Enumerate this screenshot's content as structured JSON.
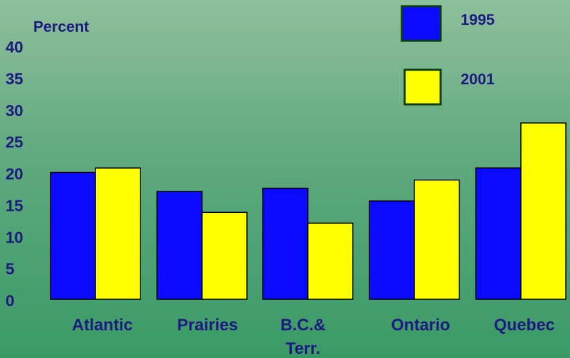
{
  "chart_data": {
    "type": "bar",
    "ylabel": "Percent",
    "categories": [
      "Atlantic",
      "Prairies",
      "B.C.& Terr.",
      "Ontario",
      "Quebec"
    ],
    "category_lines": [
      [
        "Atlantic"
      ],
      [
        "Prairies"
      ],
      [
        "B.C.&",
        "Terr."
      ],
      [
        "Ontario"
      ],
      [
        "Quebec"
      ]
    ],
    "series": [
      {
        "name": "1995",
        "values": [
          20,
          17,
          17.5,
          15.5,
          20.7
        ],
        "color": "#0a0aff"
      },
      {
        "name": "2001",
        "values": [
          20.7,
          13.7,
          12,
          18.8,
          27.8
        ],
        "color": "#ffff00"
      }
    ],
    "ylim": [
      0,
      40
    ],
    "yticks": [
      0,
      5,
      10,
      15,
      20,
      25,
      30,
      35,
      40
    ],
    "grid": false,
    "legend_position": "top-right"
  }
}
